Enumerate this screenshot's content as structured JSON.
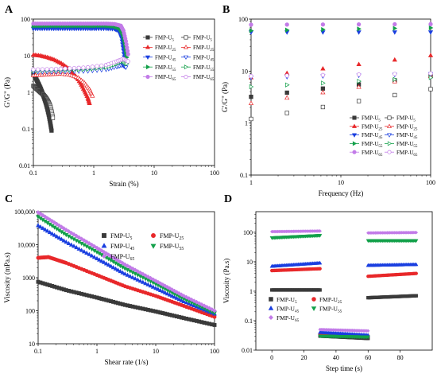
{
  "figure": {
    "panels": [
      "A",
      "B",
      "C",
      "D"
    ]
  },
  "colors": {
    "U5": "#3a3a3a",
    "U25": "#e8282a",
    "U45": "#1a3fe0",
    "U55": "#13a04a",
    "U65": "#c27be8"
  },
  "chart_data": [
    {
      "panel": "A",
      "type": "scatter",
      "xlabel": "Strain (%)",
      "ylabel": "G'/G\" (Pa)",
      "x_scale": "log",
      "y_scale": "log",
      "xlim": [
        0.1,
        100
      ],
      "ylim": [
        0.01,
        100
      ],
      "x_ticks": [
        "0.1",
        "1",
        "10",
        "100"
      ],
      "y_ticks": [
        "0.01",
        "0.1",
        "1",
        "10",
        "100"
      ],
      "legend_position": "right",
      "series": [
        {
          "name": "FMP-U5",
          "legend_base": "FMP-U",
          "legend_sub": "5",
          "key": "U5",
          "modulus": "G'",
          "x": [
            0.1,
            0.11,
            0.12,
            0.13,
            0.14,
            0.15,
            0.16,
            0.17,
            0.18,
            0.19,
            0.2
          ],
          "y": [
            3.2,
            2.4,
            1.8,
            1.35,
            1.0,
            0.72,
            0.52,
            0.36,
            0.24,
            0.15,
            0.09
          ]
        },
        {
          "name": "FMP-U5",
          "legend_base": "FMP-U",
          "legend_sub": "5",
          "key": "U5",
          "modulus": "G\"",
          "x": [
            0.1,
            0.11,
            0.12,
            0.13,
            0.14,
            0.15,
            0.16,
            0.17,
            0.18,
            0.19,
            0.2,
            0.21
          ],
          "y": [
            1.5,
            1.3,
            1.15,
            1.02,
            0.92,
            0.82,
            0.72,
            0.62,
            0.52,
            0.42,
            0.3,
            0.2
          ]
        },
        {
          "name": "FMP-U25",
          "legend_base": "FMP-U",
          "legend_sub": "25",
          "key": "U25",
          "modulus": "G'",
          "x": [
            0.1,
            0.13,
            0.17,
            0.22,
            0.29,
            0.38,
            0.5,
            0.6,
            0.7,
            0.8,
            0.85
          ],
          "y": [
            10.5,
            10.0,
            9.0,
            7.8,
            6.2,
            4.5,
            2.8,
            1.8,
            1.1,
            0.7,
            0.5
          ]
        },
        {
          "name": "FMP-U25",
          "legend_base": "FMP-U",
          "legend_sub": "25",
          "key": "U25",
          "modulus": "G\"",
          "x": [
            0.1,
            0.14,
            0.2,
            0.28,
            0.4,
            0.55,
            0.7,
            0.85,
            0.95
          ],
          "y": [
            2.9,
            3.0,
            3.1,
            3.2,
            3.0,
            2.5,
            1.8,
            1.2,
            0.8
          ]
        },
        {
          "name": "FMP-U45",
          "legend_base": "FMP-U",
          "legend_sub": "45",
          "key": "U45",
          "modulus": "G'",
          "x": [
            0.1,
            0.14,
            0.2,
            0.28,
            0.4,
            0.56,
            0.8,
            1.1,
            1.6,
            2.2,
            2.6,
            2.9,
            3.1,
            3.3
          ],
          "y": [
            55,
            55,
            55,
            55,
            55,
            55,
            55,
            55,
            55,
            54,
            48,
            30,
            14,
            6
          ]
        },
        {
          "name": "FMP-U45",
          "legend_base": "FMP-U",
          "legend_sub": "45",
          "key": "U45",
          "modulus": "G\"",
          "x": [
            0.1,
            0.2,
            0.4,
            0.8,
            1.6,
            2.4,
            3.0,
            3.4
          ],
          "y": [
            3.6,
            3.6,
            3.7,
            3.8,
            4.2,
            5.0,
            5.6,
            4.8
          ]
        },
        {
          "name": "FMP-U55",
          "legend_base": "FMP-U",
          "legend_sub": "55",
          "key": "U55",
          "modulus": "G'",
          "x": [
            0.1,
            0.14,
            0.2,
            0.28,
            0.4,
            0.56,
            0.8,
            1.1,
            1.6,
            2.2,
            2.7,
            3.0,
            3.3,
            3.5
          ],
          "y": [
            65,
            65,
            65,
            65,
            65,
            65,
            65,
            65,
            65,
            63,
            56,
            40,
            20,
            9
          ]
        },
        {
          "name": "FMP-U55",
          "legend_base": "FMP-U",
          "legend_sub": "55",
          "key": "U55",
          "modulus": "G\"",
          "x": [
            0.1,
            0.2,
            0.4,
            0.8,
            1.6,
            2.4,
            3.0,
            3.5
          ],
          "y": [
            3.9,
            4.0,
            4.1,
            4.3,
            4.8,
            6.0,
            7.2,
            6.0
          ]
        },
        {
          "name": "FMP-U65",
          "legend_base": "FMP-U",
          "legend_sub": "65",
          "key": "U65",
          "modulus": "G'",
          "x": [
            0.1,
            0.14,
            0.2,
            0.28,
            0.4,
            0.56,
            0.8,
            1.1,
            1.6,
            2.2,
            2.8,
            3.1,
            3.4,
            3.7
          ],
          "y": [
            75,
            75,
            75,
            75,
            75,
            75,
            75,
            75,
            75,
            73,
            66,
            48,
            25,
            11
          ]
        },
        {
          "name": "FMP-U65",
          "legend_base": "FMP-U",
          "legend_sub": "65",
          "key": "U65",
          "modulus": "G\"",
          "x": [
            0.1,
            0.2,
            0.4,
            0.8,
            1.6,
            2.4,
            3.1,
            3.7
          ],
          "y": [
            4.2,
            4.3,
            4.5,
            4.8,
            5.6,
            7.0,
            8.2,
            7.0
          ]
        }
      ]
    },
    {
      "panel": "B",
      "type": "scatter",
      "xlabel": "Frequency (Hz)",
      "ylabel": "G'/G\" (Pa)",
      "x_scale": "log",
      "y_scale": "log",
      "xlim": [
        1,
        100
      ],
      "ylim": [
        0.1,
        100
      ],
      "x_ticks": [
        "1",
        "10",
        "100"
      ],
      "y_ticks": [
        "0.1",
        "1",
        "10",
        "100"
      ],
      "legend_position": "bottom-right",
      "series": [
        {
          "name": "FMP-U5",
          "legend_base": "FMP-U",
          "legend_sub": "5",
          "key": "U5",
          "modulus": "G'",
          "x": [
            1,
            100
          ],
          "y": [
            3.2,
            8.0
          ]
        },
        {
          "name": "FMP-U5",
          "legend_base": "FMP-U",
          "legend_sub": "5",
          "key": "U5",
          "modulus": "G\"",
          "x": [
            1,
            100
          ],
          "y": [
            1.2,
            4.5
          ]
        },
        {
          "name": "FMP-U25",
          "legend_base": "FMP-U",
          "legend_sub": "25",
          "key": "U25",
          "modulus": "G'",
          "x": [
            1,
            100
          ],
          "y": [
            7.5,
            20
          ]
        },
        {
          "name": "FMP-U25",
          "legend_base": "FMP-U",
          "legend_sub": "25",
          "key": "U25",
          "modulus": "G\"",
          "x": [
            1,
            100
          ],
          "y": [
            2.4,
            8.0
          ]
        },
        {
          "name": "FMP-U45",
          "legend_base": "FMP-U",
          "legend_sub": "45",
          "key": "U45",
          "modulus": "G'",
          "x": [
            1,
            100
          ],
          "y": [
            56,
            56
          ]
        },
        {
          "name": "FMP-U45",
          "legend_base": "FMP-U",
          "legend_sub": "45",
          "key": "U45",
          "modulus": "G\"",
          "x": [
            1,
            100
          ],
          "y": [
            7.5,
            8.8
          ]
        },
        {
          "name": "FMP-U55",
          "legend_base": "FMP-U",
          "legend_sub": "55",
          "key": "U55",
          "modulus": "G'",
          "x": [
            1,
            100
          ],
          "y": [
            60,
            68
          ]
        },
        {
          "name": "FMP-U55",
          "legend_base": "FMP-U",
          "legend_sub": "55",
          "key": "U55",
          "modulus": "G\"",
          "x": [
            1,
            100
          ],
          "y": [
            5.0,
            7.5
          ]
        },
        {
          "name": "FMP-U65",
          "legend_base": "FMP-U",
          "legend_sub": "65",
          "key": "U65",
          "modulus": "G'",
          "x": [
            1,
            100
          ],
          "y": [
            78,
            80
          ]
        },
        {
          "name": "FMP-U65",
          "legend_base": "FMP-U",
          "legend_sub": "65",
          "key": "U65",
          "modulus": "G\"",
          "x": [
            1,
            100
          ],
          "y": [
            8.0,
            9.0
          ]
        }
      ]
    },
    {
      "panel": "C",
      "type": "scatter",
      "xlabel": "Shear rate (1/s)",
      "ylabel": "Viscosity (mPa.s)",
      "x_scale": "log",
      "y_scale": "log",
      "xlim": [
        0.1,
        100
      ],
      "ylim": [
        10,
        100000
      ],
      "x_ticks": [
        "0.1",
        "1",
        "10",
        "100"
      ],
      "y_ticks": [
        "10",
        "100",
        "1000",
        "10,000",
        "100,000"
      ],
      "legend_position": "top-right",
      "series": [
        {
          "name": "FMP-U5",
          "legend_base": "FMP-U",
          "legend_sub": "5",
          "key": "U5",
          "x": [
            0.1,
            0.3,
            1,
            3,
            10,
            30,
            100
          ],
          "y": [
            750,
            420,
            250,
            150,
            95,
            60,
            37
          ]
        },
        {
          "name": "FMP-U25",
          "legend_base": "FMP-U",
          "legend_sub": "25",
          "key": "U25",
          "x": [
            0.1,
            0.15,
            0.3,
            1,
            3,
            10,
            30,
            100
          ],
          "y": [
            4000,
            4200,
            2800,
            1200,
            550,
            280,
            140,
            65
          ]
        },
        {
          "name": "FMP-U45",
          "legend_base": "FMP-U",
          "legend_sub": "45",
          "key": "U45",
          "x": [
            0.1,
            0.3,
            1,
            3,
            10,
            30,
            100
          ],
          "y": [
            38000,
            12000,
            3800,
            1300,
            480,
            190,
            80
          ]
        },
        {
          "name": "FMP-U55",
          "legend_base": "FMP-U",
          "legend_sub": "55",
          "key": "U55",
          "x": [
            0.1,
            0.3,
            1,
            3,
            10,
            30,
            100
          ],
          "y": [
            70000,
            20000,
            6000,
            1900,
            650,
            230,
            85
          ]
        },
        {
          "name": "FMP-U65",
          "legend_base": "FMP-U",
          "legend_sub": "65",
          "key": "U65",
          "x": [
            0.1,
            0.3,
            1,
            3,
            10,
            30,
            100
          ],
          "y": [
            95000,
            28000,
            8000,
            2500,
            800,
            280,
            100
          ]
        }
      ]
    },
    {
      "panel": "D",
      "type": "scatter",
      "xlabel": "Step time (s)",
      "ylabel": "Viscosity (Pa.s)",
      "x_scale": "linear",
      "y_scale": "log",
      "xlim": [
        -10,
        100
      ],
      "ylim": [
        0.01,
        500
      ],
      "x_ticks": [
        "0",
        "20",
        "40",
        "60",
        "80"
      ],
      "y_ticks": [
        "0.01",
        "0.1",
        "1",
        "10",
        "100"
      ],
      "legend_position": "bottom-left",
      "series": [
        {
          "name": "FMP-U5",
          "legend_base": "FMP-U",
          "legend_sub": "5",
          "key": "U5",
          "segments": [
            {
              "x": [
                0,
                30
              ],
              "y": [
                1.1,
                1.1
              ]
            },
            {
              "x": [
                30,
                60
              ],
              "y": [
                0.03,
                0.025
              ]
            },
            {
              "x": [
                60,
                90
              ],
              "y": [
                0.6,
                0.7
              ]
            }
          ]
        },
        {
          "name": "FMP-U25",
          "legend_base": "FMP-U",
          "legend_sub": "25",
          "key": "U25",
          "segments": [
            {
              "x": [
                0,
                30
              ],
              "y": [
                5.0,
                5.8
              ]
            },
            {
              "x": [
                30,
                60
              ],
              "y": [
                0.035,
                0.03
              ]
            },
            {
              "x": [
                60,
                90
              ],
              "y": [
                3.2,
                4.0
              ]
            }
          ]
        },
        {
          "name": "FMP-U45",
          "legend_base": "FMP-U",
          "legend_sub": "45",
          "key": "U45",
          "segments": [
            {
              "x": [
                0,
                30
              ],
              "y": [
                7.0,
                9.0
              ]
            },
            {
              "x": [
                30,
                60
              ],
              "y": [
                0.04,
                0.032
              ]
            },
            {
              "x": [
                60,
                90
              ],
              "y": [
                7.5,
                8.0
              ]
            }
          ]
        },
        {
          "name": "FMP-U55",
          "legend_base": "FMP-U",
          "legend_sub": "55",
          "key": "U55",
          "segments": [
            {
              "x": [
                0,
                30
              ],
              "y": [
                65,
                78
              ]
            },
            {
              "x": [
                30,
                60
              ],
              "y": [
                0.03,
                0.028
              ]
            },
            {
              "x": [
                60,
                90
              ],
              "y": [
                52,
                52
              ]
            }
          ]
        },
        {
          "name": "FMP-U65",
          "legend_base": "FMP-U",
          "legend_sub": "65",
          "key": "U65",
          "segments": [
            {
              "x": [
                0,
                30
              ],
              "y": [
                105,
                110
              ]
            },
            {
              "x": [
                30,
                60
              ],
              "y": [
                0.05,
                0.045
              ]
            },
            {
              "x": [
                60,
                90
              ],
              "y": [
                95,
                98
              ]
            }
          ]
        }
      ]
    }
  ]
}
